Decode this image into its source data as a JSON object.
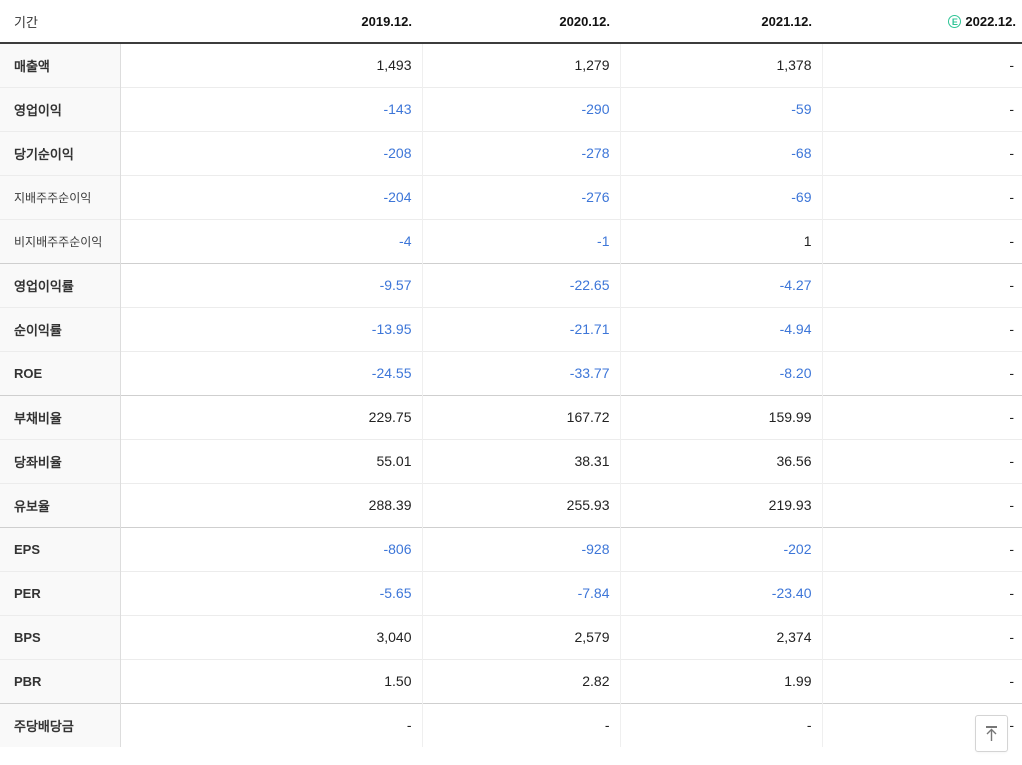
{
  "header": {
    "period_label": "기간",
    "columns": [
      {
        "label": "2019.12.",
        "estimate": false
      },
      {
        "label": "2020.12.",
        "estimate": false
      },
      {
        "label": "2021.12.",
        "estimate": false
      },
      {
        "label": "2022.12.",
        "estimate": true
      }
    ],
    "estimate_badge": "E"
  },
  "table": {
    "rows": [
      {
        "label": "매출액",
        "sub": false,
        "group_end": false,
        "values": [
          {
            "text": "1,493",
            "negative": false
          },
          {
            "text": "1,279",
            "negative": false
          },
          {
            "text": "1,378",
            "negative": false
          },
          {
            "text": "-",
            "negative": false
          }
        ]
      },
      {
        "label": "영업이익",
        "sub": false,
        "group_end": false,
        "values": [
          {
            "text": "-143",
            "negative": true
          },
          {
            "text": "-290",
            "negative": true
          },
          {
            "text": "-59",
            "negative": true
          },
          {
            "text": "-",
            "negative": false
          }
        ]
      },
      {
        "label": "당기순이익",
        "sub": false,
        "group_end": false,
        "values": [
          {
            "text": "-208",
            "negative": true
          },
          {
            "text": "-278",
            "negative": true
          },
          {
            "text": "-68",
            "negative": true
          },
          {
            "text": "-",
            "negative": false
          }
        ]
      },
      {
        "label": "지배주주순이익",
        "sub": true,
        "group_end": false,
        "values": [
          {
            "text": "-204",
            "negative": true
          },
          {
            "text": "-276",
            "negative": true
          },
          {
            "text": "-69",
            "negative": true
          },
          {
            "text": "-",
            "negative": false
          }
        ]
      },
      {
        "label": "비지배주주순이익",
        "sub": true,
        "group_end": true,
        "values": [
          {
            "text": "-4",
            "negative": true
          },
          {
            "text": "-1",
            "negative": true
          },
          {
            "text": "1",
            "negative": false
          },
          {
            "text": "-",
            "negative": false
          }
        ]
      },
      {
        "label": "영업이익률",
        "sub": false,
        "group_end": false,
        "values": [
          {
            "text": "-9.57",
            "negative": true
          },
          {
            "text": "-22.65",
            "negative": true
          },
          {
            "text": "-4.27",
            "negative": true
          },
          {
            "text": "-",
            "negative": false
          }
        ]
      },
      {
        "label": "순이익률",
        "sub": false,
        "group_end": false,
        "values": [
          {
            "text": "-13.95",
            "negative": true
          },
          {
            "text": "-21.71",
            "negative": true
          },
          {
            "text": "-4.94",
            "negative": true
          },
          {
            "text": "-",
            "negative": false
          }
        ]
      },
      {
        "label": "ROE",
        "sub": false,
        "group_end": true,
        "values": [
          {
            "text": "-24.55",
            "negative": true
          },
          {
            "text": "-33.77",
            "negative": true
          },
          {
            "text": "-8.20",
            "negative": true
          },
          {
            "text": "-",
            "negative": false
          }
        ]
      },
      {
        "label": "부채비율",
        "sub": false,
        "group_end": false,
        "values": [
          {
            "text": "229.75",
            "negative": false
          },
          {
            "text": "167.72",
            "negative": false
          },
          {
            "text": "159.99",
            "negative": false
          },
          {
            "text": "-",
            "negative": false
          }
        ]
      },
      {
        "label": "당좌비율",
        "sub": false,
        "group_end": false,
        "values": [
          {
            "text": "55.01",
            "negative": false
          },
          {
            "text": "38.31",
            "negative": false
          },
          {
            "text": "36.56",
            "negative": false
          },
          {
            "text": "-",
            "negative": false
          }
        ]
      },
      {
        "label": "유보율",
        "sub": false,
        "group_end": true,
        "values": [
          {
            "text": "288.39",
            "negative": false
          },
          {
            "text": "255.93",
            "negative": false
          },
          {
            "text": "219.93",
            "negative": false
          },
          {
            "text": "-",
            "negative": false
          }
        ]
      },
      {
        "label": "EPS",
        "sub": false,
        "group_end": false,
        "values": [
          {
            "text": "-806",
            "negative": true
          },
          {
            "text": "-928",
            "negative": true
          },
          {
            "text": "-202",
            "negative": true
          },
          {
            "text": "-",
            "negative": false
          }
        ]
      },
      {
        "label": "PER",
        "sub": false,
        "group_end": false,
        "values": [
          {
            "text": "-5.65",
            "negative": true
          },
          {
            "text": "-7.84",
            "negative": true
          },
          {
            "text": "-23.40",
            "negative": true
          },
          {
            "text": "-",
            "negative": false
          }
        ]
      },
      {
        "label": "BPS",
        "sub": false,
        "group_end": false,
        "values": [
          {
            "text": "3,040",
            "negative": false
          },
          {
            "text": "2,579",
            "negative": false
          },
          {
            "text": "2,374",
            "negative": false
          },
          {
            "text": "-",
            "negative": false
          }
        ]
      },
      {
        "label": "PBR",
        "sub": false,
        "group_end": true,
        "values": [
          {
            "text": "1.50",
            "negative": false
          },
          {
            "text": "2.82",
            "negative": false
          },
          {
            "text": "1.99",
            "negative": false
          },
          {
            "text": "-",
            "negative": false
          }
        ]
      },
      {
        "label": "주당배당금",
        "sub": false,
        "group_end": false,
        "values": [
          {
            "text": "-",
            "negative": false
          },
          {
            "text": "-",
            "negative": false
          },
          {
            "text": "-",
            "negative": false
          },
          {
            "text": "-",
            "negative": false
          }
        ]
      }
    ]
  },
  "scroll_top_button": {
    "icon": "arrow-to-top-icon"
  },
  "colors": {
    "negative_value": "#3d76d8",
    "positive_value": "#222222",
    "estimate_badge": "#2fc496",
    "header_border": "#3c3c3c"
  }
}
